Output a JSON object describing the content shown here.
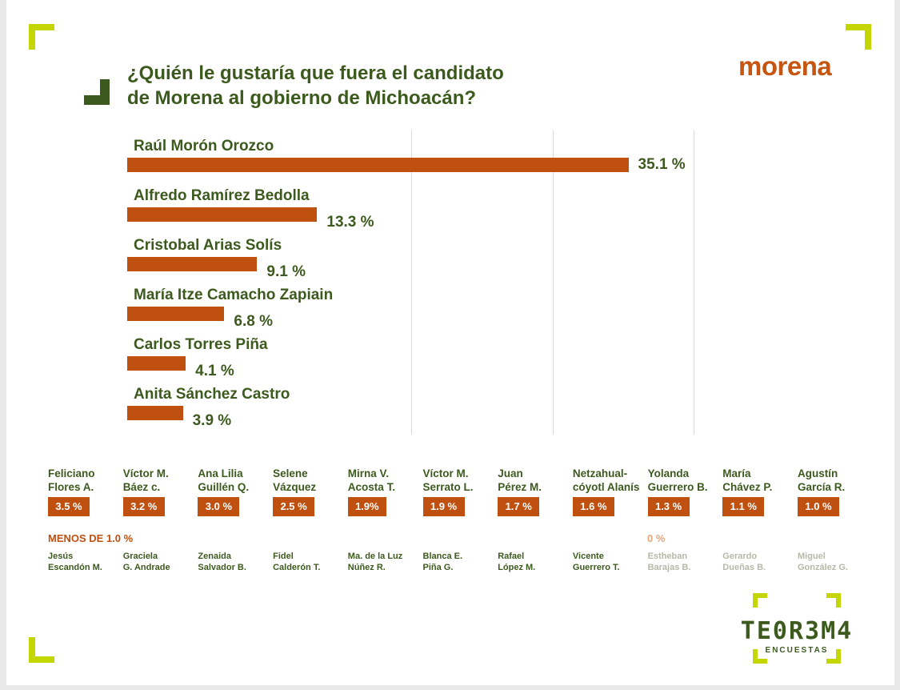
{
  "title_lines": [
    "¿Quién le gustaría que fuera el candidato",
    "de Morena al gobierno de Michoacán?"
  ],
  "brand": "morena",
  "colors": {
    "bar": "#c0500f",
    "text": "#3d5a1e",
    "accent": "#c4d600",
    "muted": "#b6b8a8"
  },
  "chart_data": {
    "type": "bar",
    "orientation": "horizontal",
    "categories": [
      "Raúl Morón Orozco",
      "Alfredo Ramírez Bedolla",
      "Cristobal Arias Solís",
      "María Itze Camacho Zapiain",
      "Carlos Torres Piña",
      "Anita Sánchez Castro"
    ],
    "values": [
      35.1,
      13.3,
      9.1,
      6.8,
      4.1,
      3.9
    ],
    "value_labels": [
      "35.1 %",
      "13.3 %",
      "9.1 %",
      "6.8 %",
      "4.1 %",
      "3.9 %"
    ],
    "grid": true
  },
  "minor": [
    {
      "name": [
        "Feliciano",
        "Flores A."
      ],
      "value": "3.5 %"
    },
    {
      "name": [
        "Víctor M.",
        "Báez c."
      ],
      "value": "3.2 %"
    },
    {
      "name": [
        "Ana Lilia",
        "Guillén Q."
      ],
      "value": "3.0 %"
    },
    {
      "name": [
        "Selene",
        "Vázquez"
      ],
      "value": "2.5 %"
    },
    {
      "name": [
        "Mirna V.",
        "Acosta T."
      ],
      "value": "1.9%"
    },
    {
      "name": [
        "Víctor M.",
        "Serrato L."
      ],
      "value": "1.9 %"
    },
    {
      "name": [
        "Juan",
        "Pérez M."
      ],
      "value": "1.7 %"
    },
    {
      "name": [
        "Netzahual-",
        "cóyotl Alanís"
      ],
      "value": "1.6 %"
    },
    {
      "name": [
        "Yolanda",
        "Guerrero B."
      ],
      "value": "1.3 %"
    },
    {
      "name": [
        "María",
        "Chávez P."
      ],
      "value": "1.1 %"
    },
    {
      "name": [
        "Agustín",
        "García R."
      ],
      "value": "1.0 %"
    }
  ],
  "menos_label": "MENOS DE 1.0 %",
  "cero_label": "0 %",
  "small_names": [
    {
      "name": [
        "Jesús",
        "Escandón M."
      ],
      "muted": false
    },
    {
      "name": [
        "Graciela",
        "G. Andrade"
      ],
      "muted": false
    },
    {
      "name": [
        "Zenaida",
        "Salvador B."
      ],
      "muted": false
    },
    {
      "name": [
        "Fidel",
        "Calderón T."
      ],
      "muted": false
    },
    {
      "name": [
        "Ma. de la Luz",
        "Núñez R."
      ],
      "muted": false
    },
    {
      "name": [
        "Blanca E.",
        "Piña G."
      ],
      "muted": false
    },
    {
      "name": [
        "Rafael",
        "López M."
      ],
      "muted": false
    },
    {
      "name": [
        "Vicente",
        "Guerrero T."
      ],
      "muted": false
    },
    {
      "name": [
        "Estheban",
        "Barajas B."
      ],
      "muted": true
    },
    {
      "name": [
        "Gerardo",
        "Dueñas B."
      ],
      "muted": true
    },
    {
      "name": [
        "Miguel",
        "González G."
      ],
      "muted": true
    }
  ],
  "logo": {
    "word": "TE0R3M4",
    "sub": "ENCUESTAS"
  }
}
